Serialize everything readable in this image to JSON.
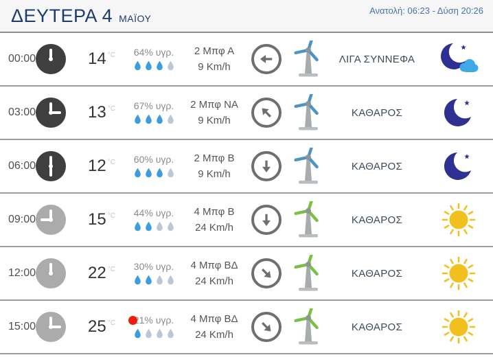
{
  "header": {
    "day": "ΔΕΥΤΕΡΑ 4",
    "month": "ΜΑΪΟΥ",
    "sun_times": "Ανατολή: 06:23  - Δύση 20:26"
  },
  "units": {
    "temp": "°C",
    "humidity_label": "υγρ."
  },
  "colors": {
    "drop_on": "#3d9ce0",
    "drop_off": "#bcc8d2",
    "turbine_night": "#4b93c8",
    "turbine_day": "#7ac143",
    "moon": "#2e3192",
    "cloud": "#3fa9e8",
    "sun": "#f2c01e",
    "max_dot": "#ee1c0c"
  },
  "rows": [
    {
      "time": "00:00",
      "period": "night",
      "clock_hour_angle": 0,
      "temp": "14",
      "is_max": false,
      "humidity": "64%",
      "drops_filled": 3,
      "wind": "2 Μπφ Α",
      "speed": "9 Km/h",
      "arrow_dir": "left",
      "sky": "ΛΙΓΑ ΣΥΝΝΕΦΑ",
      "weather": "moon-cloud"
    },
    {
      "time": "03:00",
      "period": "night",
      "clock_hour_angle": 90,
      "temp": "13",
      "is_max": false,
      "humidity": "67%",
      "drops_filled": 3,
      "wind": "2 Μπφ ΝΑ",
      "speed": "9 Km/h",
      "arrow_dir": "up-left",
      "sky": "ΚΑΘΑΡΟΣ",
      "weather": "moon"
    },
    {
      "time": "06:00",
      "period": "night",
      "clock_hour_angle": 180,
      "temp": "12",
      "is_max": false,
      "humidity": "60%",
      "drops_filled": 3,
      "wind": "2 Μπφ Β",
      "speed": "9 Km/h",
      "arrow_dir": "down",
      "sky": "ΚΑΘΑΡΟΣ",
      "weather": "moon"
    },
    {
      "time": "09:00",
      "period": "day",
      "clock_hour_angle": 270,
      "temp": "15",
      "is_max": false,
      "humidity": "44%",
      "drops_filled": 2,
      "wind": "4 Μπφ Β",
      "speed": "24 Km/h",
      "arrow_dir": "down",
      "sky": "ΚΑΘΑΡΟΣ",
      "weather": "sun"
    },
    {
      "time": "12:00",
      "period": "day",
      "clock_hour_angle": 0,
      "temp": "22",
      "is_max": false,
      "humidity": "30%",
      "drops_filled": 2,
      "wind": "4 Μπφ ΒΔ",
      "speed": "24 Km/h",
      "arrow_dir": "down-right",
      "sky": "ΚΑΘΑΡΟΣ",
      "weather": "sun"
    },
    {
      "time": "15:00",
      "period": "day",
      "clock_hour_angle": 90,
      "temp": "25",
      "is_max": true,
      "humidity": "21%",
      "drops_filled": 1,
      "wind": "4 Μπφ ΒΔ",
      "speed": "24 Km/h",
      "arrow_dir": "down-right",
      "sky": "ΚΑΘΑΡΟΣ",
      "weather": "sun"
    }
  ]
}
